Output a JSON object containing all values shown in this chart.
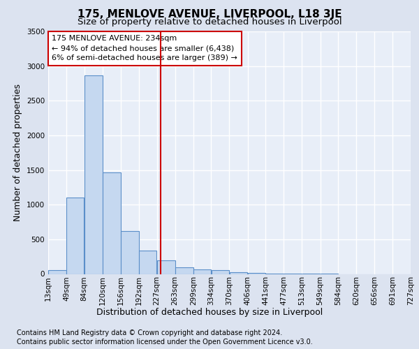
{
  "title": "175, MENLOVE AVENUE, LIVERPOOL, L18 3JE",
  "subtitle": "Size of property relative to detached houses in Liverpool",
  "xlabel": "Distribution of detached houses by size in Liverpool",
  "ylabel": "Number of detached properties",
  "footnote1": "Contains HM Land Registry data © Crown copyright and database right 2024.",
  "footnote2": "Contains public sector information licensed under the Open Government Licence v3.0.",
  "annotation_line1": "175 MENLOVE AVENUE: 234sqm",
  "annotation_line2": "← 94% of detached houses are smaller (6,438)",
  "annotation_line3": "6% of semi-detached houses are larger (389) →",
  "bar_left_edges": [
    13,
    49,
    84,
    120,
    156,
    192,
    227,
    263,
    299,
    334,
    370,
    406,
    441,
    477,
    513,
    549,
    584,
    620,
    656,
    691
  ],
  "bar_widths": [
    36,
    35,
    36,
    36,
    36,
    35,
    36,
    36,
    35,
    36,
    36,
    35,
    36,
    36,
    36,
    35,
    36,
    36,
    35,
    36
  ],
  "bar_heights": [
    55,
    1100,
    2870,
    1470,
    620,
    340,
    200,
    95,
    65,
    55,
    30,
    15,
    5,
    5,
    3,
    2,
    0,
    0,
    0,
    0
  ],
  "bar_color": "#c5d8f0",
  "bar_edge_color": "#5b8fc9",
  "vline_x": 234,
  "vline_color": "#cc0000",
  "annotation_box_color": "#cc0000",
  "ylim": [
    0,
    3500
  ],
  "yticks": [
    0,
    500,
    1000,
    1500,
    2000,
    2500,
    3000,
    3500
  ],
  "xtick_labels": [
    "13sqm",
    "49sqm",
    "84sqm",
    "120sqm",
    "156sqm",
    "192sqm",
    "227sqm",
    "263sqm",
    "299sqm",
    "334sqm",
    "370sqm",
    "406sqm",
    "441sqm",
    "477sqm",
    "513sqm",
    "549sqm",
    "584sqm",
    "620sqm",
    "656sqm",
    "691sqm",
    "727sqm"
  ],
  "bg_color": "#dce3f0",
  "plot_bg_color": "#e8eef8",
  "grid_color": "#ffffff",
  "title_fontsize": 11,
  "subtitle_fontsize": 9.5,
  "annot_fontsize": 8,
  "tick_fontsize": 7.5,
  "ylabel_fontsize": 9,
  "xlabel_fontsize": 9,
  "footnote_fontsize": 7
}
